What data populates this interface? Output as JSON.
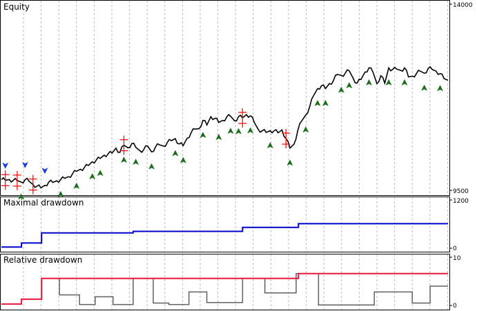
{
  "chart_data": [
    {
      "type": "line",
      "title": "Equity",
      "ylim": [
        9500,
        14000
      ],
      "y_ticks": [
        "14000",
        "9500"
      ],
      "grid": true,
      "colors": {
        "equity": "#000000",
        "sell_marker": "#ff0000",
        "buy_marker_up": "#008000",
        "buy_marker_down": "#0000ff"
      },
      "series": [
        {
          "values": [
            9760,
            9745,
            9760,
            9740,
            9735,
            9700,
            9760,
            9720,
            9640,
            9600,
            9560,
            9620,
            9700,
            9690,
            9730,
            9760,
            9790,
            9830,
            9900,
            9960,
            10010,
            10050,
            10100,
            10190,
            10230,
            10270,
            10350,
            10380,
            10400,
            10520,
            10420,
            10590,
            10530,
            10630,
            10540,
            10460,
            10480,
            10570,
            10430,
            10550,
            10600,
            10570,
            10660,
            10700,
            10750,
            10620,
            10580,
            10760,
            10890,
            10980,
            10990,
            11190,
            11080,
            11280,
            11240,
            11140,
            11190,
            11270,
            11290,
            11180,
            11280,
            11250,
            11330,
            11300,
            11140,
            10970,
            10940,
            10900,
            10940,
            10940,
            10890,
            10960,
            10750,
            10520,
            10610,
            10950,
            11180,
            11320,
            11520,
            11790,
            11960,
            12030,
            11960,
            12080,
            12150,
            12300,
            12280,
            12330,
            12390,
            12210,
            12090,
            12180,
            12360,
            12460,
            12360,
            12080,
            12270,
            12090,
            12460,
            12420,
            12430,
            12400,
            12460,
            12240,
            12260,
            12320,
            12380,
            12330,
            12450,
            12420,
            12380,
            12320,
            12200,
            12160
          ]
        }
      ],
      "markers": {
        "sell": [
          0.01,
          0.035,
          0.07,
          0.27,
          0.54,
          0.64
        ],
        "buy_up": [
          0.045,
          0.13,
          0.165,
          0.2,
          0.225,
          0.27,
          0.3,
          0.34,
          0.385,
          0.41,
          0.45,
          0.49,
          0.51,
          0.535,
          0.56,
          0.6,
          0.645,
          0.68,
          0.71,
          0.73,
          0.76,
          0.78,
          0.82,
          0.87,
          0.9,
          0.95,
          0.985
        ],
        "buy_down": [
          0.005,
          0.055,
          0.1
        ]
      }
    },
    {
      "type": "line",
      "title": "Maximal drawdown",
      "ylim": [
        0,
        1200
      ],
      "y_ticks": [
        "1200",
        "0"
      ],
      "series": [
        {
          "x": [
            0,
            0.045,
            0.045,
            0.09,
            0.09,
            0.295,
            0.295,
            0.54,
            0.54,
            0.665,
            0.665,
            1.0
          ],
          "values": [
            30,
            30,
            130,
            130,
            380,
            380,
            420,
            420,
            520,
            520,
            610,
            610
          ]
        }
      ],
      "colors": {
        "line": "#0000cc"
      }
    },
    {
      "type": "line",
      "title": "Relative drawdown",
      "ylim": [
        0,
        10
      ],
      "y_ticks": [
        "10",
        "0"
      ],
      "series": [
        {
          "x": [
            0,
            0.045,
            0.045,
            0.09,
            0.09,
            0.665,
            0.665,
            1.0
          ],
          "values": [
            0.3,
            0.3,
            1.3,
            1.3,
            5.6,
            5.6,
            6.6,
            6.6
          ],
          "color": "#e8163c"
        },
        {
          "x": [
            0.13,
            0.13,
            0.175,
            0.175,
            0.21,
            0.21,
            0.25,
            0.25,
            0.295,
            0.295,
            0.34,
            0.34,
            0.375,
            0.375,
            0.42,
            0.42,
            0.46,
            0.46,
            0.54,
            0.54,
            0.59,
            0.59,
            0.66,
            0.66,
            0.71,
            0.71,
            0.835,
            0.835,
            0.92,
            0.92,
            0.96,
            0.96,
            1.0
          ],
          "values": [
            5.6,
            2.2,
            2.2,
            0.2,
            0.2,
            1.8,
            1.8,
            0.2,
            0.2,
            5.6,
            5.6,
            0.5,
            0.5,
            0.2,
            0.2,
            2.8,
            2.8,
            0.6,
            0.6,
            5.6,
            5.6,
            2.6,
            2.6,
            6.6,
            6.6,
            0.1,
            0.1,
            2.8,
            2.8,
            0.5,
            0.5,
            4.0,
            4.0
          ],
          "color": "#606060"
        }
      ]
    }
  ]
}
